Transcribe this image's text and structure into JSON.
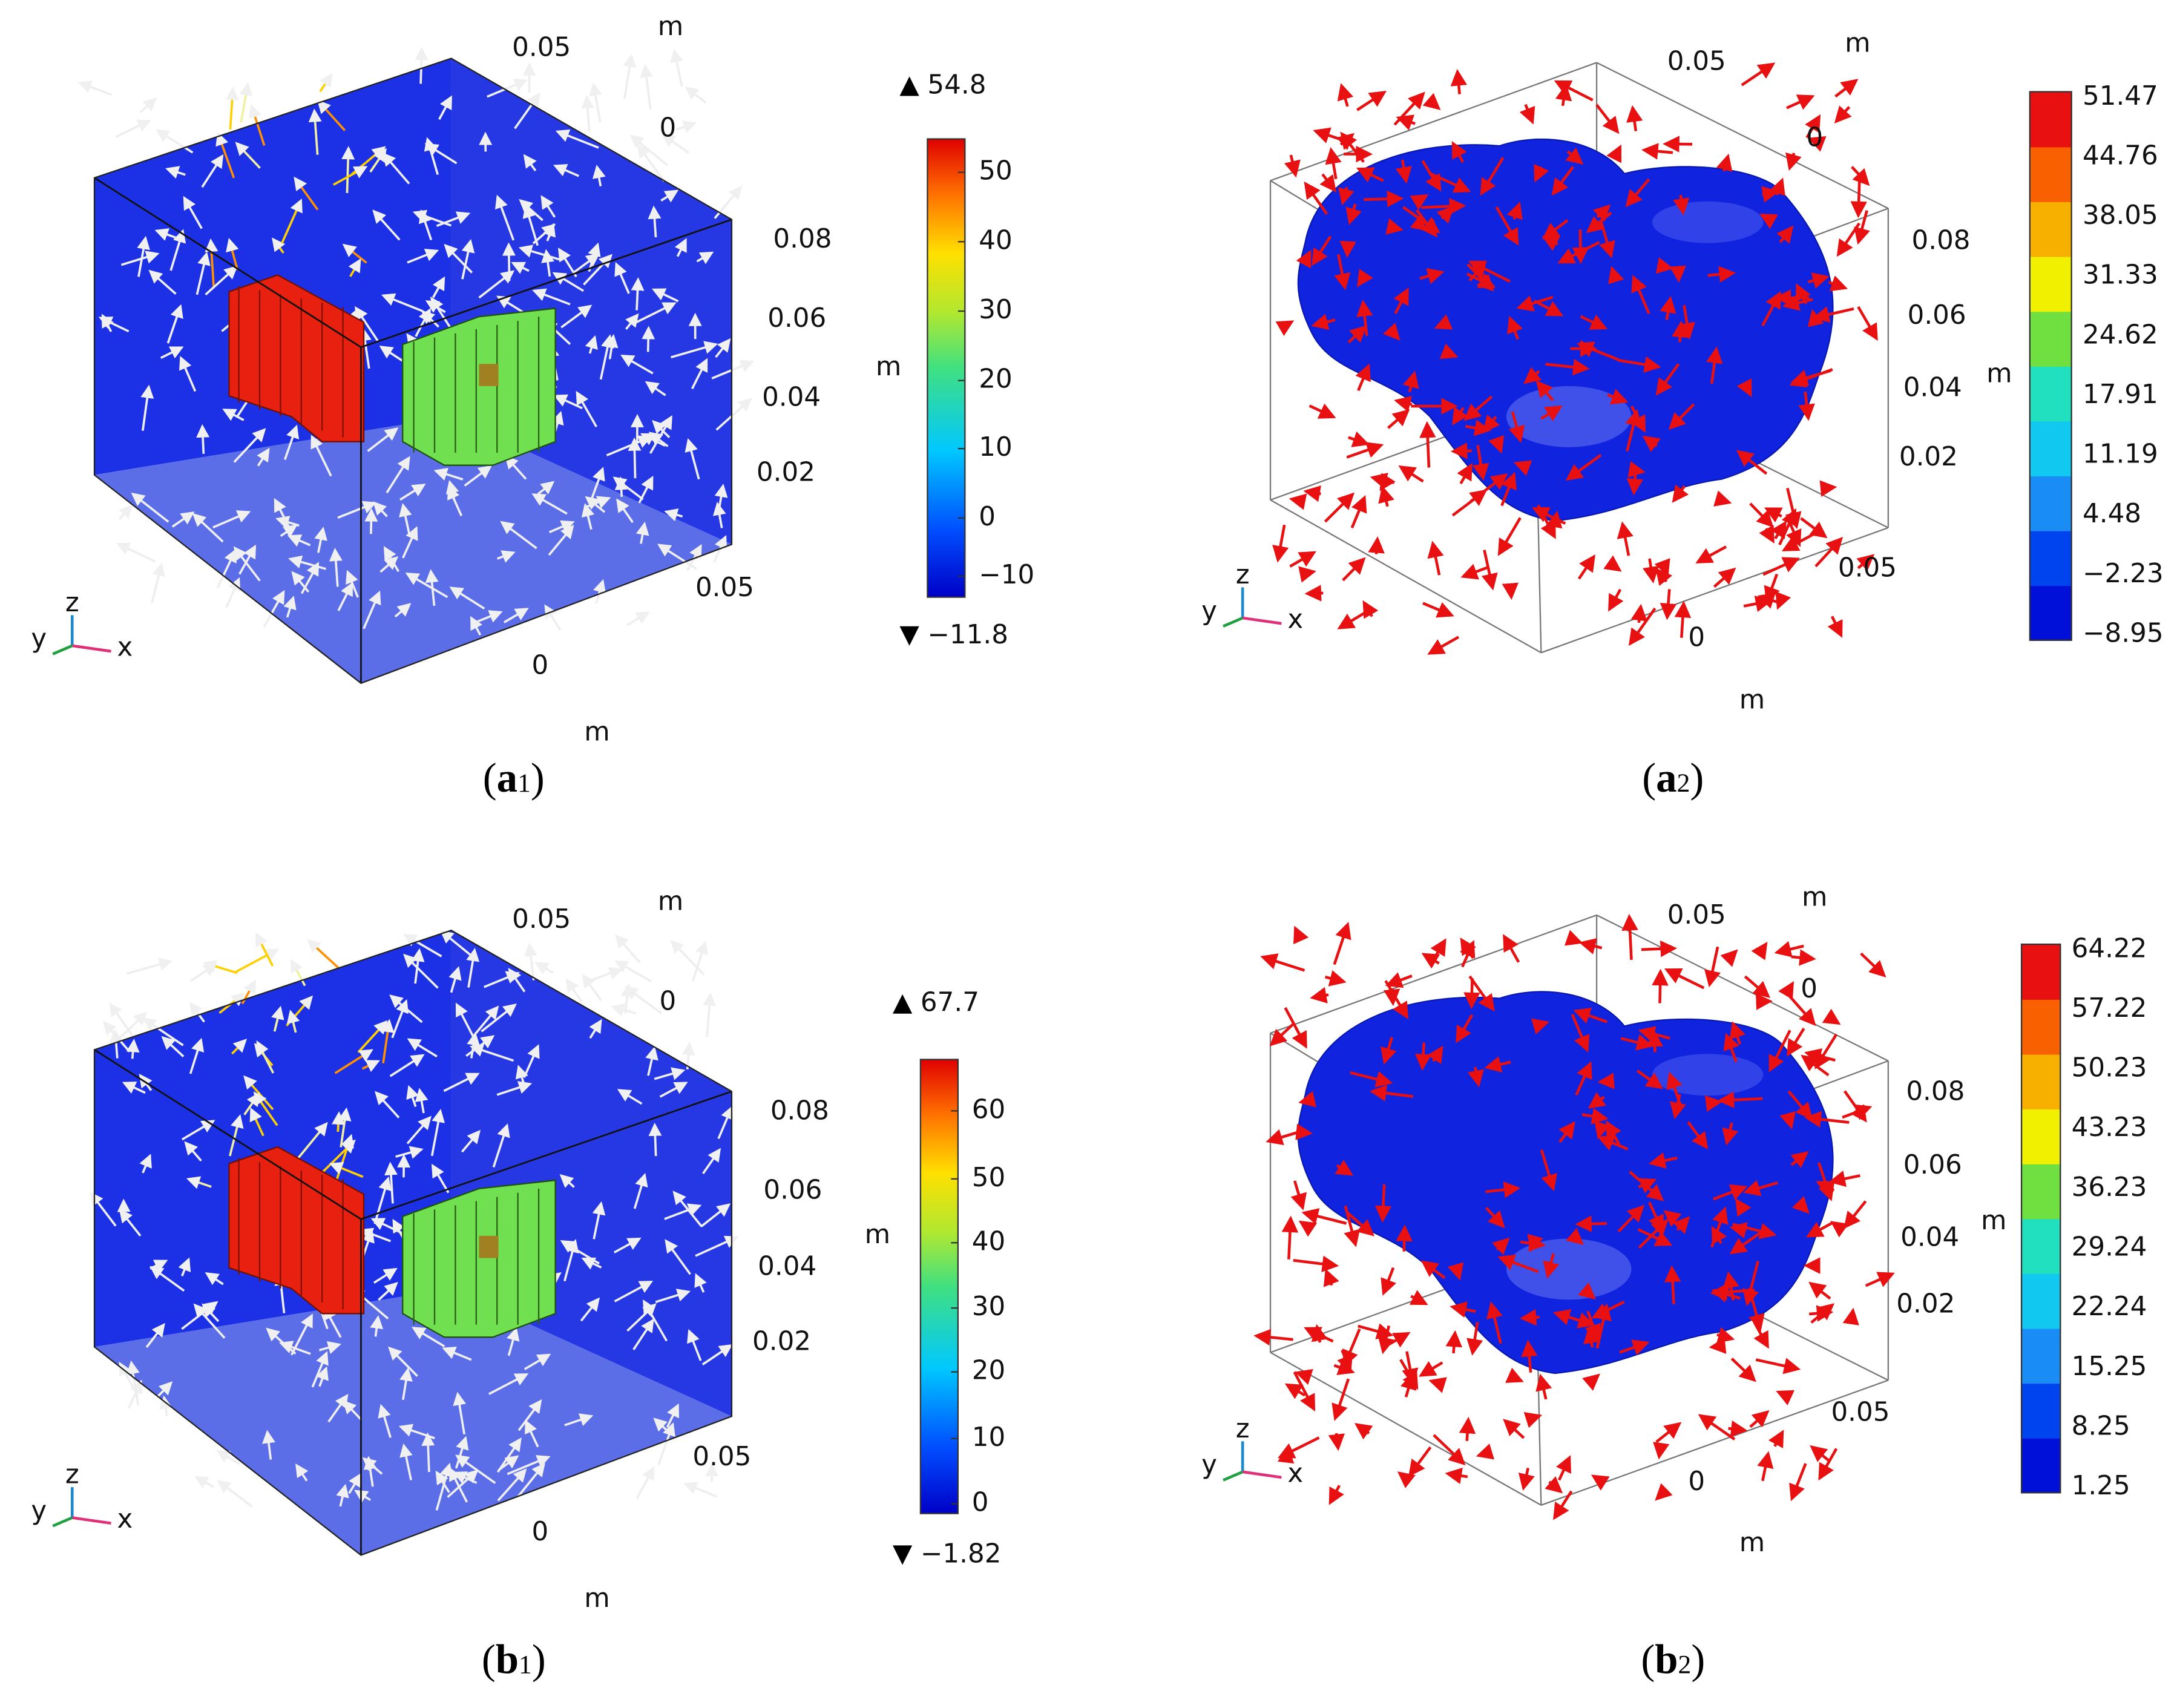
{
  "panels": [
    {
      "axis_ticks": [
        "0.05",
        "m",
        "0",
        "0.08",
        "0.06",
        "0.04",
        "0.02",
        "0.05",
        "0",
        "m"
      ],
      "triad": [
        "y",
        "z",
        "x"
      ],
      "colorbar": {
        "unit": "m",
        "max": "54.8",
        "min": "−11.8",
        "ticks": [
          "50",
          "40",
          "30",
          "20",
          "10",
          "0",
          "−10"
        ]
      },
      "caption": [
        "(",
        "a",
        "1",
        ")"
      ]
    },
    {
      "axis_ticks": [
        "0.05",
        "m",
        "0",
        "0.08",
        "0.06",
        "0.04",
        "0.02",
        "0.05",
        "0",
        "m"
      ],
      "triad": [
        "y",
        "z",
        "x"
      ],
      "colorbar": {
        "unit": "m",
        "ticks": [
          "51.47",
          "44.76",
          "38.05",
          "31.33",
          "24.62",
          "17.91",
          "11.19",
          "4.48",
          "−2.23",
          "−8.95"
        ]
      },
      "caption": [
        "(",
        "a",
        "2",
        ")"
      ]
    },
    {
      "axis_ticks": [
        "0.05",
        "m",
        "0",
        "0.08",
        "0.06",
        "0.04",
        "0.02",
        "0.05",
        "0",
        "m"
      ],
      "triad": [
        "y",
        "z",
        "x"
      ],
      "colorbar": {
        "unit": "m",
        "max": "67.7",
        "min": "−1.82",
        "ticks": [
          "60",
          "50",
          "40",
          "30",
          "20",
          "10",
          "0"
        ]
      },
      "caption": [
        "(",
        "b",
        "1",
        ")"
      ]
    },
    {
      "axis_ticks": [
        "0.05",
        "m",
        "0",
        "0.08",
        "0.06",
        "0.04",
        "0.02",
        "0.05",
        "0",
        "m"
      ],
      "triad": [
        "y",
        "z",
        "x"
      ],
      "colorbar": {
        "unit": "m",
        "ticks": [
          "64.22",
          "57.22",
          "50.23",
          "43.23",
          "36.23",
          "29.24",
          "22.24",
          "15.25",
          "8.25",
          "1.25"
        ]
      },
      "caption": [
        "(",
        "b",
        "2",
        ")"
      ]
    }
  ]
}
